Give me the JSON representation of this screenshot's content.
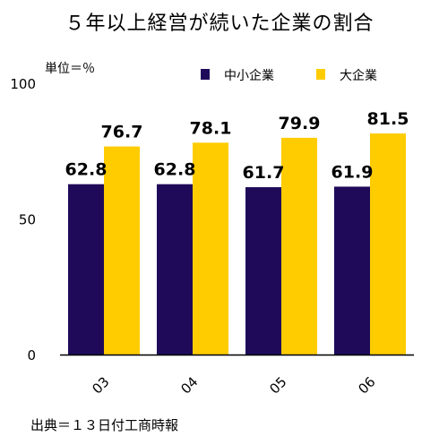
{
  "title": "５年以上経営が続いた企業の割合",
  "unit_label": "単位＝％",
  "source": "出典＝１３日付工商時報",
  "colors": {
    "sme": "#1f0a5a",
    "large": "#ffcc00",
    "axis": "#000000"
  },
  "chart_data": {
    "type": "bar",
    "categories": [
      "03",
      "04",
      "05",
      "06"
    ],
    "series": [
      {
        "name": "中小企業",
        "values": [
          62.8,
          62.8,
          61.7,
          61.9
        ]
      },
      {
        "name": "大企業",
        "values": [
          76.7,
          78.1,
          79.9,
          81.5
        ]
      }
    ],
    "ylim": [
      0,
      100
    ],
    "yticks": [
      0,
      50,
      100
    ],
    "legend_position": "top-right",
    "grid": false
  }
}
